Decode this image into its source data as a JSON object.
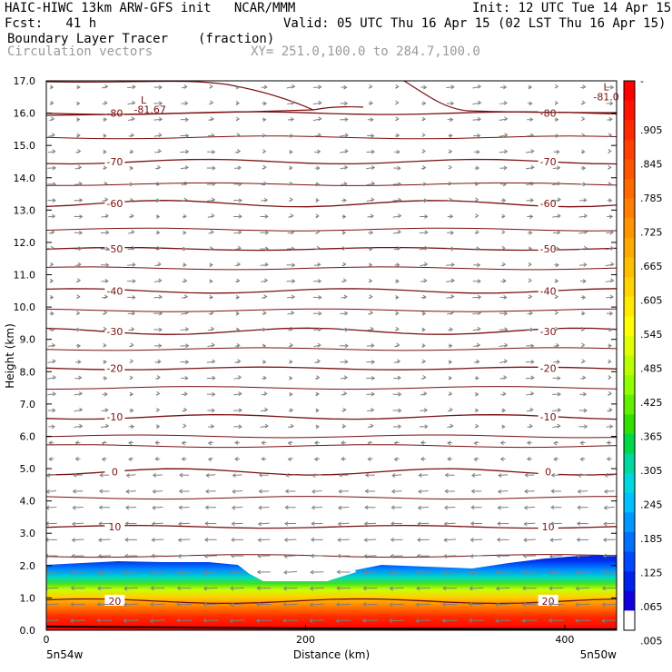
{
  "header": {
    "model_line": "HAIC-HIWC 13km ARW-GFS init   NCAR/MMM",
    "init_line": "Init: 12 UTC Tue 14 Apr 15",
    "fcst_line": "Fcst:   41 h",
    "valid_line": "Valid: 05 UTC Thu 16 Apr 15 (02 LST Thu 16 Apr 15)",
    "field_name": "Boundary Layer Tracer",
    "field_unit": "(fraction)",
    "vector_name": "Circulation vectors",
    "xy_line": "XY= 251.0,100.0 to 284.7,100.0"
  },
  "chart_data": {
    "type": "heatmap",
    "xlabel": "Distance (km)",
    "ylabel": "Height (km)",
    "xlim": [
      0,
      440
    ],
    "ylim": [
      0.0,
      17.0
    ],
    "x_ticks": [
      0,
      200,
      400
    ],
    "y_ticks": [
      "0.0",
      "1.0",
      "2.0",
      "3.0",
      "4.0",
      "5.0",
      "6.0",
      "7.0",
      "8.0",
      "9.0",
      "10.0",
      "11.0",
      "12.0",
      "13.0",
      "14.0",
      "15.0",
      "16.0",
      "17.0"
    ],
    "x_end_labels": {
      "left": "5n54w",
      "right": "5n50w"
    },
    "colorbar": {
      "tick_labels": [
        "-",
        ".905",
        ".845",
        ".785",
        ".725",
        ".665",
        ".605",
        ".545",
        ".485",
        ".425",
        ".365",
        ".305",
        ".245",
        ".185",
        ".125",
        ".065",
        ".005"
      ],
      "colors": [
        "#ff0000",
        "#ff1500",
        "#ff2a00",
        "#ff4000",
        "#ff5500",
        "#ff6a00",
        "#ff8000",
        "#ff9500",
        "#ffaa00",
        "#ffbf00",
        "#ffd400",
        "#ffea00",
        "#ffff00",
        "#e0ff00",
        "#b8ff00",
        "#90ff00",
        "#60f000",
        "#30e000",
        "#00d84a",
        "#00d8a0",
        "#00d8e0",
        "#00c0ff",
        "#0098ff",
        "#0070ff",
        "#0048ff",
        "#0020f0",
        "#1000e0",
        "#ffffff"
      ]
    },
    "temperature_contours": [
      {
        "label": "-80",
        "height": 16.0
      },
      {
        "label": "-70",
        "height": 14.5
      },
      {
        "label": "-60",
        "height": 13.2
      },
      {
        "label": "-50",
        "height": 11.8
      },
      {
        "label": "-40",
        "height": 10.5
      },
      {
        "label": "-30",
        "height": 9.25
      },
      {
        "label": "-20",
        "height": 8.1
      },
      {
        "label": "-10",
        "height": 6.6
      },
      {
        "label": "0",
        "height": 4.9
      },
      {
        "label": "10",
        "height": 3.2
      },
      {
        "label": "20",
        "height": 0.9
      }
    ],
    "annotations": [
      {
        "text": "L",
        "x": 75,
        "y": 16.3
      },
      {
        "text": "-81.67",
        "x": 80,
        "y": 16.0
      },
      {
        "text": "L",
        "x": 432,
        "y": 16.7
      },
      {
        "text": "-81.0",
        "x": 432,
        "y": 16.4
      }
    ],
    "tracer_top_km": 2.0,
    "colors": {
      "contour": "#7a1010",
      "vector": "#7f7f7f",
      "axis": "#000000"
    }
  }
}
